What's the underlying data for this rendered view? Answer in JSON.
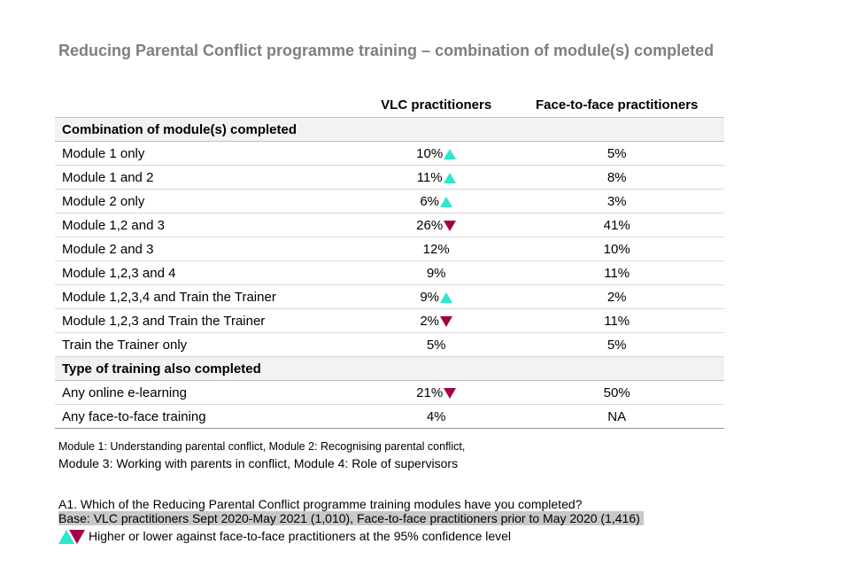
{
  "title": "Reducing Parental Conflict programme training – combination of module(s) completed",
  "columns": [
    "VLC practitioners",
    "Face-to-face practitioners"
  ],
  "colors": {
    "higher": "#2ee6cc",
    "lower": "#a3004a"
  },
  "sections": [
    {
      "heading": "Combination of module(s) completed",
      "rows": [
        {
          "label": "Module 1 only",
          "vlc": "10%",
          "sig": "higher",
          "f2f": "5%"
        },
        {
          "label": "Module 1 and 2",
          "vlc": "11%",
          "sig": "higher",
          "f2f": "8%"
        },
        {
          "label": "Module 2 only",
          "vlc": "6%",
          "sig": "higher",
          "f2f": "3%"
        },
        {
          "label": "Module 1,2 and 3",
          "vlc": "26%",
          "sig": "lower",
          "f2f": "41%"
        },
        {
          "label": "Module 2 and 3",
          "vlc": "12%",
          "sig": "",
          "f2f": "10%"
        },
        {
          "label": "Module 1,2,3 and 4",
          "vlc": "9%",
          "sig": "",
          "f2f": "11%"
        },
        {
          "label": "Module 1,2,3,4 and Train the Trainer",
          "vlc": "9%",
          "sig": "higher",
          "f2f": "2%"
        },
        {
          "label": "Module 1,2,3 and Train the Trainer",
          "vlc": "2%",
          "sig": "lower",
          "f2f": "11%"
        },
        {
          "label": "Train the Trainer only",
          "vlc": "5%",
          "sig": "",
          "f2f": "5%"
        }
      ]
    },
    {
      "heading": "Type of training also completed",
      "rows": [
        {
          "label": "Any online e-learning",
          "vlc": "21%",
          "sig": "lower",
          "f2f": "50%"
        },
        {
          "label": "Any face-to-face training",
          "vlc": "4%",
          "sig": "",
          "f2f": "NA"
        }
      ]
    }
  ],
  "notes": {
    "modules_line1": "Module 1: Understanding parental conflict, Module 2: Recognising parental conflict,",
    "modules_line2": "Module 3: Working with parents in conflict, Module 4: Role of supervisors",
    "question": "A1. Which of the Reducing Parental Conflict programme training modules have you completed?",
    "base": "Base: VLC practitioners Sept 2020-May 2021 (1,010), Face-to-face practitioners prior to May 2020 (1,416)",
    "legend": "Higher or lower against face-to-face practitioners at the 95% confidence level"
  }
}
